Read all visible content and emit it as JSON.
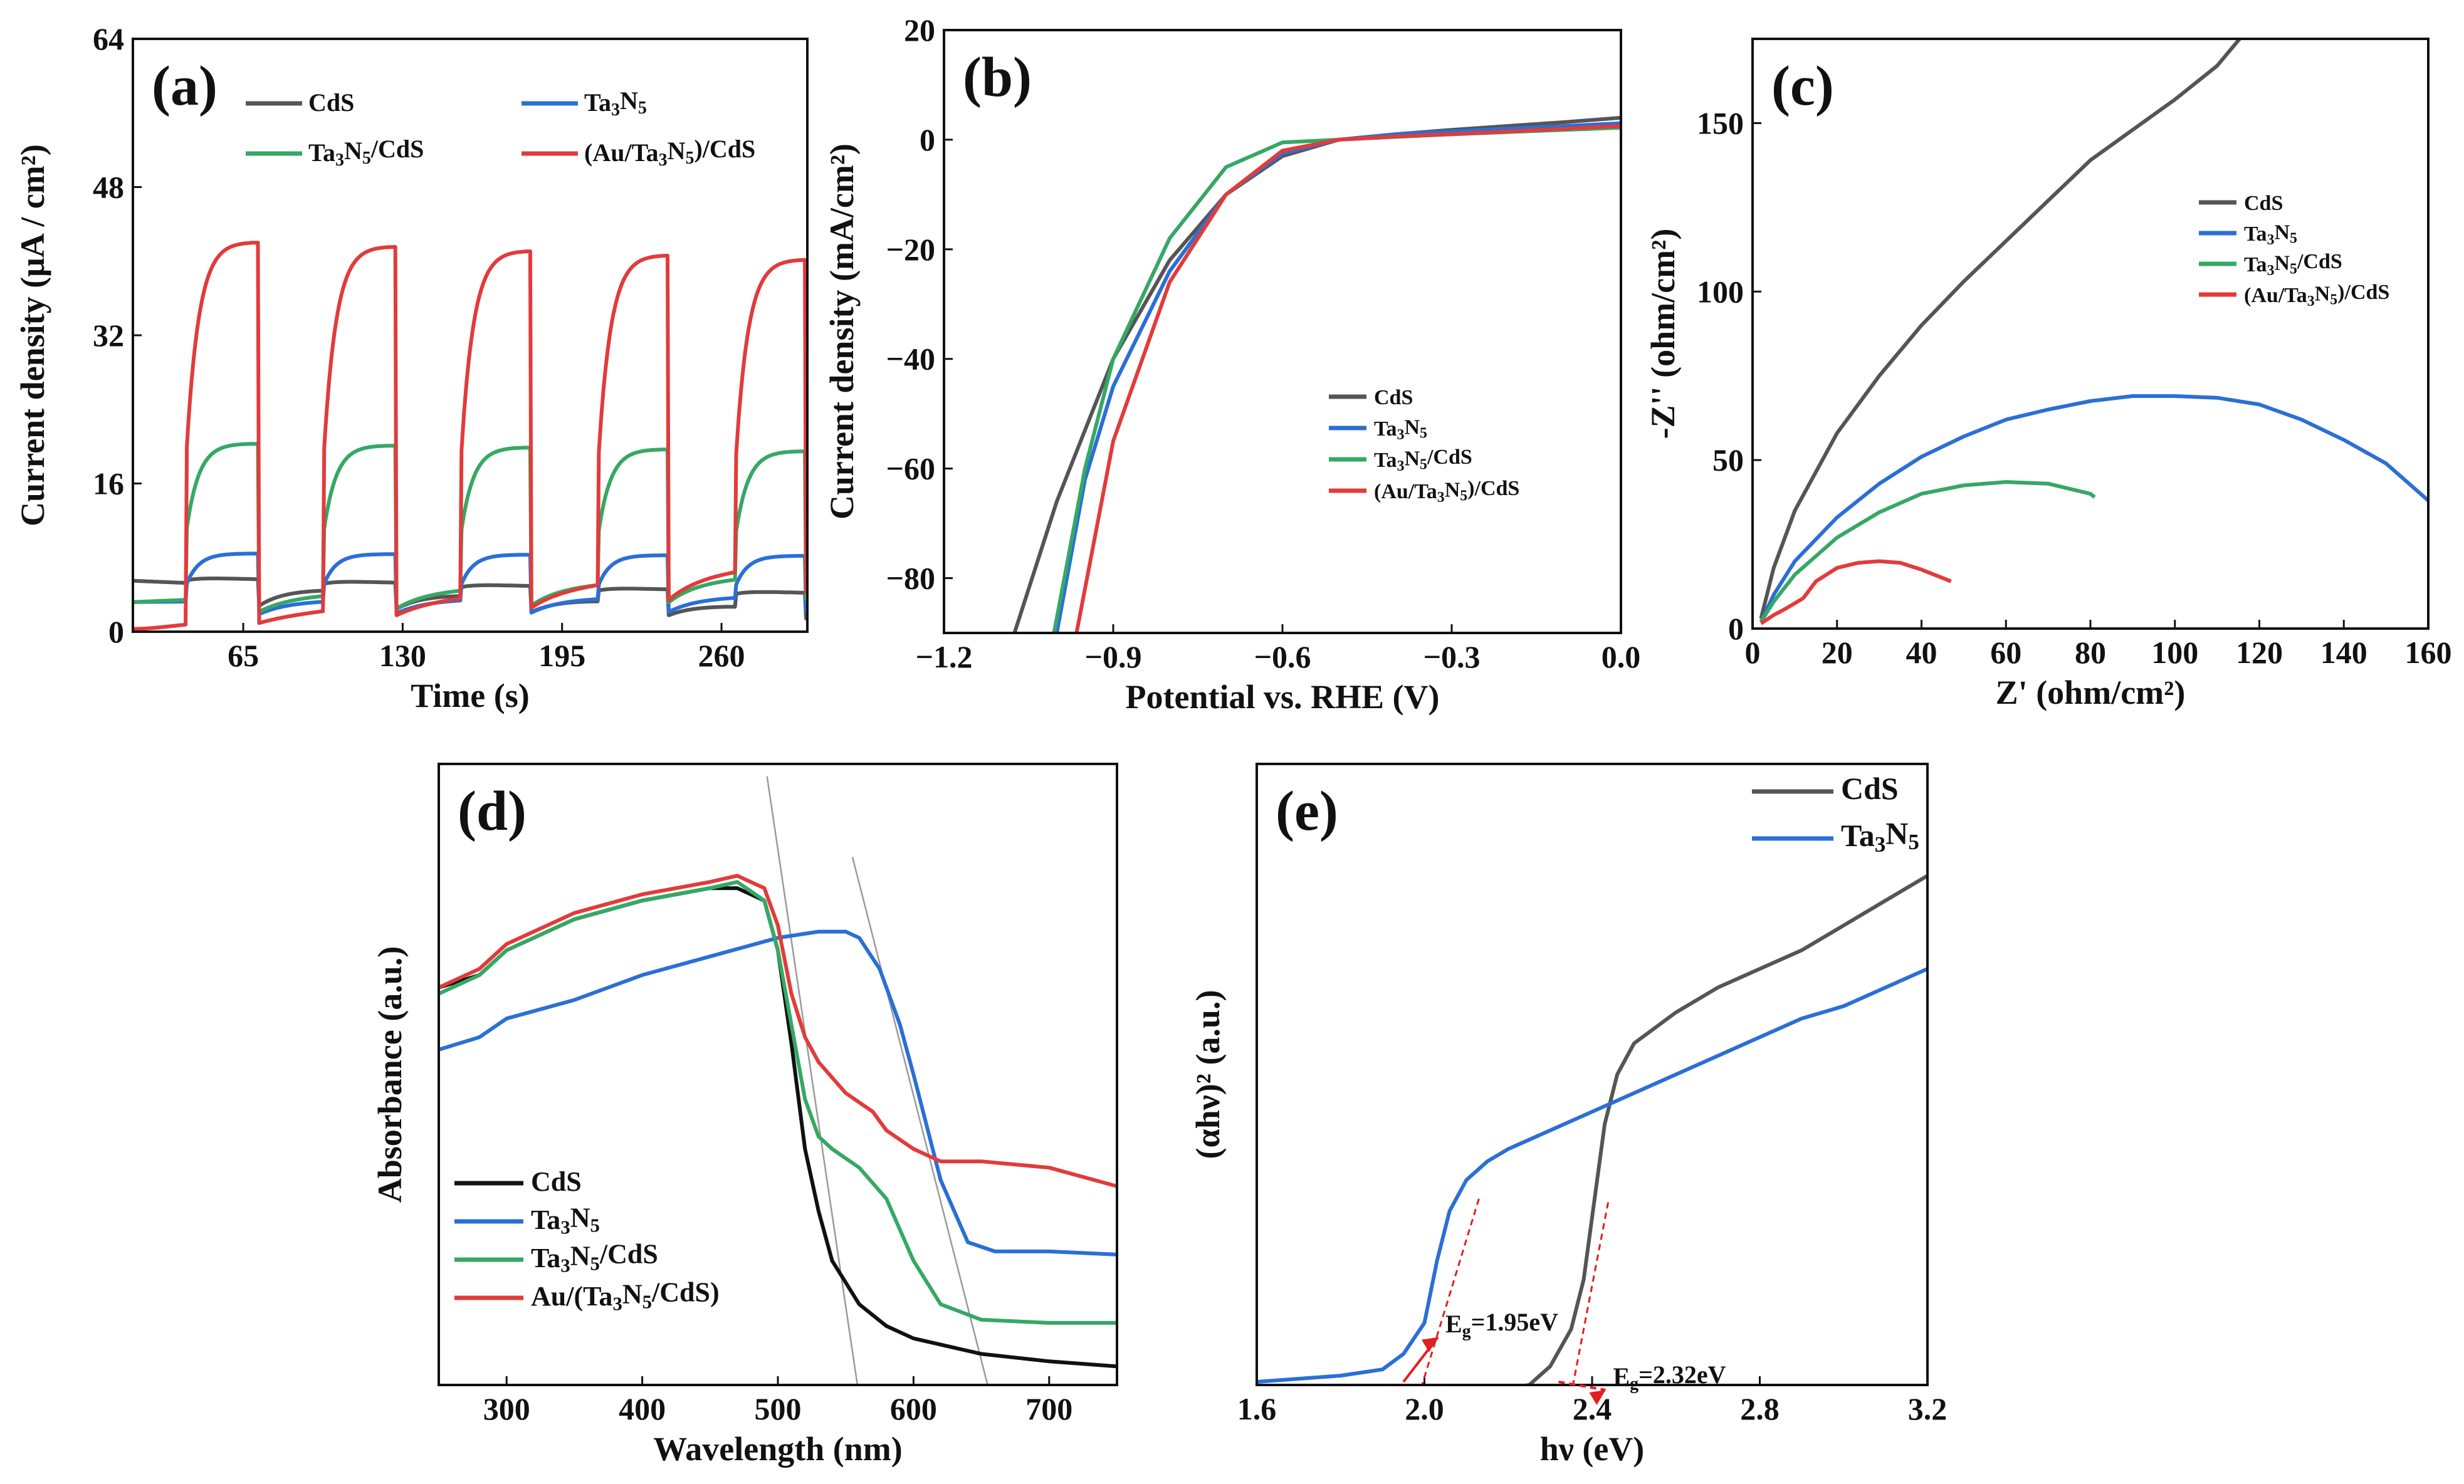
{
  "colors": {
    "cds": "#555555",
    "ta3n5": "#2b6fd6",
    "ta3n5_cds": "#35a865",
    "au_ta3n5_cds": "#e23b3b",
    "cds_black": "#111111",
    "guide": "#9a9a9a",
    "annot_red": "#e02020"
  },
  "chart_data": [
    {
      "id": "a",
      "panel_label": "(a)",
      "type": "line",
      "xlabel": "Time (s)",
      "ylabel": "Current density (μA / cm²)",
      "xlim": [
        20,
        295
      ],
      "ylim": [
        0,
        64
      ],
      "xticks": [
        65,
        130,
        195,
        260
      ],
      "xtick_labels": [
        "65",
        "130",
        "195",
        "260"
      ],
      "yticks": [
        0,
        16,
        32,
        48,
        64
      ],
      "ytick_labels": [
        "0",
        "16",
        "32",
        "48",
        "64"
      ],
      "legend": [
        "CdS",
        "Ta3N5",
        "Ta3N5/CdS",
        "(Au/Ta3N5)/CdS"
      ],
      "light_on_intervals": [
        [
          42,
          71
        ],
        [
          98,
          127
        ],
        [
          154,
          182
        ],
        [
          210,
          238
        ],
        [
          266,
          294
        ]
      ],
      "series": [
        {
          "name": "CdS",
          "dark_baseline": [
            5.5,
            2.5
          ],
          "on_plateau": [
            6.0,
            4.2
          ],
          "rise": 0.3
        },
        {
          "name": "Ta3N5",
          "dark_baseline": [
            3.2,
            3.9
          ],
          "on_plateau": [
            8.5,
            8.2
          ],
          "rise": 3
        },
        {
          "name": "Ta3N5/CdS",
          "dark_baseline": [
            3.2,
            6.2
          ],
          "on_plateau": [
            20.5,
            19.5
          ],
          "rise": 5
        },
        {
          "name": "(Au/Ta3N5)/CdS",
          "dark_baseline": [
            0.3,
            7.5
          ],
          "on_plateau": [
            42.5,
            40.2
          ],
          "rise": 5
        }
      ]
    },
    {
      "id": "b",
      "panel_label": "(b)",
      "type": "line",
      "xlabel": "Potential vs. RHE (V)",
      "ylabel": "Current density (mA/cm²)",
      "xlim": [
        -1.2,
        0.0
      ],
      "ylim": [
        -90,
        20
      ],
      "xticks": [
        -1.2,
        -0.9,
        -0.6,
        -0.3,
        0.0
      ],
      "xtick_labels": [
        "−1.2",
        "−0.9",
        "−0.6",
        "−0.3",
        "0.0"
      ],
      "yticks": [
        -80,
        -60,
        -40,
        -20,
        0,
        20
      ],
      "ytick_labels": [
        "−80",
        "−60",
        "−40",
        "−20",
        "0",
        "20"
      ],
      "legend": [
        "CdS",
        "Ta3N5",
        "Ta3N5/CdS",
        "(Au/Ta3N5)/CdS"
      ],
      "series": [
        {
          "name": "CdS",
          "x": [
            -1.075,
            -1.0,
            -0.9,
            -0.8,
            -0.7,
            -0.6,
            -0.5,
            -0.4,
            -0.3,
            -0.2,
            -0.1,
            0.0
          ],
          "y": [
            -90,
            -66,
            -40,
            -22,
            -10,
            -3,
            0,
            1,
            1.8,
            2.5,
            3.2,
            4.0
          ]
        },
        {
          "name": "Ta3N5",
          "x": [
            -1.0,
            -0.95,
            -0.9,
            -0.8,
            -0.7,
            -0.6,
            -0.5,
            -0.4,
            -0.3,
            -0.2,
            -0.1,
            0.0
          ],
          "y": [
            -90,
            -62,
            -45,
            -24,
            -10,
            -2.5,
            0,
            1,
            1.5,
            2.0,
            2.5,
            3.0
          ]
        },
        {
          "name": "Ta3N5/CdS",
          "x": [
            -1.005,
            -0.95,
            -0.9,
            -0.8,
            -0.7,
            -0.6,
            -0.5,
            -0.4,
            -0.3,
            -0.2,
            -0.1,
            0.0
          ],
          "y": [
            -90,
            -60,
            -40,
            -18,
            -5,
            -0.5,
            0,
            0.5,
            1.0,
            1.4,
            1.8,
            2.2
          ]
        },
        {
          "name": "(Au/Ta3N5)/CdS",
          "x": [
            -0.965,
            -0.9,
            -0.8,
            -0.7,
            -0.6,
            -0.5,
            -0.4,
            -0.3,
            -0.2,
            -0.1,
            0.0
          ],
          "y": [
            -90,
            -55,
            -26,
            -10,
            -2,
            0,
            0.6,
            1.0,
            1.5,
            2.0,
            2.5
          ]
        }
      ]
    },
    {
      "id": "c",
      "panel_label": "(c)",
      "type": "line",
      "xlabel": "Z' (ohm/cm²)",
      "ylabel": "-Z'' (ohm/cm²)",
      "xlim": [
        0,
        160
      ],
      "ylim": [
        0,
        175
      ],
      "xticks": [
        0,
        20,
        40,
        60,
        80,
        100,
        120,
        140,
        160
      ],
      "xtick_labels": [
        "0",
        "20",
        "40",
        "60",
        "80",
        "100",
        "120",
        "140",
        "160"
      ],
      "yticks": [
        0,
        50,
        100,
        150
      ],
      "ytick_labels": [
        "0",
        "50",
        "100",
        "150"
      ],
      "legend": [
        "CdS",
        "Ta3N5",
        "Ta3N5/CdS",
        "(Au/Ta3N5)/CdS"
      ],
      "series": [
        {
          "name": "CdS",
          "x": [
            2,
            5,
            10,
            20,
            30,
            40,
            50,
            60,
            70,
            80,
            90,
            100,
            110,
            116
          ],
          "y": [
            3,
            18,
            35,
            58,
            75,
            90,
            103,
            115,
            127,
            139,
            148,
            157,
            167,
            176
          ]
        },
        {
          "name": "Ta3N5",
          "x": [
            2,
            5,
            10,
            20,
            30,
            40,
            50,
            60,
            70,
            80,
            90,
            100,
            110,
            120,
            130,
            140,
            150,
            160
          ],
          "y": [
            2,
            10,
            20,
            33,
            43,
            51,
            57,
            62,
            65,
            67.5,
            69,
            69,
            68.5,
            66.5,
            62,
            56,
            49,
            38
          ]
        },
        {
          "name": "Ta3N5/CdS",
          "x": [
            2,
            5,
            10,
            20,
            30,
            40,
            50,
            60,
            70,
            80,
            81
          ],
          "y": [
            2,
            8,
            16,
            27,
            34.5,
            40,
            42.5,
            43.5,
            43,
            40,
            39
          ]
        },
        {
          "name": "(Au/Ta3N5)/CdS",
          "x": [
            2,
            5,
            8,
            12,
            15,
            20,
            25,
            30,
            35,
            40,
            45,
            47
          ],
          "y": [
            1.5,
            4,
            6,
            9,
            14,
            18,
            19.5,
            20,
            19.5,
            17.5,
            15,
            14
          ]
        }
      ]
    },
    {
      "id": "d",
      "panel_label": "(d)",
      "type": "line",
      "xlabel": "Wavelength (nm)",
      "ylabel": "Absorbance (a.u.)",
      "xlim": [
        250,
        750
      ],
      "ylim": [
        0,
        1
      ],
      "xticks": [
        300,
        400,
        500,
        600,
        700
      ],
      "xtick_labels": [
        "300",
        "400",
        "500",
        "600",
        "700"
      ],
      "yticks": [],
      "legend": [
        "CdS",
        "Ta3N5",
        "Ta3N5/CdS",
        "Au/(Ta3N5/CdS)"
      ],
      "guide_lines": [
        {
          "x1": 492,
          "y1": 0.98,
          "x2": 560,
          "y2": -0.02
        },
        {
          "x1": 555,
          "y1": 0.85,
          "x2": 657,
          "y2": -0.02
        }
      ],
      "series": [
        {
          "name": "CdS",
          "x": [
            250,
            280,
            300,
            350,
            400,
            450,
            470,
            490,
            500,
            510,
            520,
            530,
            540,
            560,
            580,
            600,
            650,
            700,
            750
          ],
          "y": [
            0.64,
            0.66,
            0.7,
            0.75,
            0.78,
            0.8,
            0.8,
            0.78,
            0.7,
            0.55,
            0.38,
            0.28,
            0.2,
            0.13,
            0.095,
            0.075,
            0.05,
            0.038,
            0.03
          ]
        },
        {
          "name": "Ta3N5",
          "x": [
            250,
            280,
            300,
            350,
            400,
            450,
            500,
            530,
            550,
            560,
            575,
            590,
            600,
            620,
            640,
            660,
            700,
            750
          ],
          "y": [
            0.54,
            0.56,
            0.59,
            0.62,
            0.66,
            0.69,
            0.72,
            0.73,
            0.73,
            0.72,
            0.67,
            0.58,
            0.5,
            0.33,
            0.23,
            0.215,
            0.215,
            0.21
          ]
        },
        {
          "name": "Ta3N5/CdS",
          "x": [
            250,
            280,
            300,
            350,
            400,
            450,
            470,
            490,
            500,
            510,
            520,
            530,
            540,
            560,
            580,
            600,
            620,
            650,
            700,
            750
          ],
          "y": [
            0.63,
            0.66,
            0.7,
            0.75,
            0.78,
            0.8,
            0.81,
            0.78,
            0.7,
            0.58,
            0.46,
            0.4,
            0.38,
            0.35,
            0.3,
            0.2,
            0.13,
            0.105,
            0.1,
            0.1
          ]
        },
        {
          "name": "Au/(Ta3N5/CdS)",
          "x": [
            250,
            280,
            300,
            350,
            400,
            450,
            470,
            490,
            500,
            510,
            520,
            530,
            550,
            570,
            580,
            600,
            620,
            650,
            700,
            750
          ],
          "y": [
            0.64,
            0.67,
            0.71,
            0.76,
            0.79,
            0.81,
            0.82,
            0.8,
            0.74,
            0.63,
            0.56,
            0.52,
            0.47,
            0.44,
            0.41,
            0.38,
            0.36,
            0.36,
            0.35,
            0.32
          ]
        }
      ]
    },
    {
      "id": "e",
      "panel_label": "(e)",
      "type": "line",
      "xlabel": "hν (eV)",
      "ylabel": "(αhν)² (a.u.)",
      "xlim": [
        1.6,
        3.2
      ],
      "ylim": [
        0,
        1
      ],
      "xticks": [
        1.6,
        2.0,
        2.4,
        2.8,
        3.2
      ],
      "xtick_labels": [
        "1.6",
        "2.0",
        "2.4",
        "2.8",
        "3.2"
      ],
      "yticks": [],
      "legend": [
        "CdS",
        "Ta3N5"
      ],
      "annotations": [
        {
          "label": "Eg=1.95eV",
          "x": 1.95,
          "text_x": 2.05,
          "text_y": 0.085
        },
        {
          "label": "Eg=2.32eV",
          "x": 2.32,
          "text_x": 2.45,
          "text_y": 0.0
        }
      ],
      "tangents": [
        {
          "x1": 1.94,
          "y1": -0.12,
          "x2": 2.13,
          "y2": 0.3
        },
        {
          "x1": 2.32,
          "y1": -0.12,
          "x2": 2.44,
          "y2": 0.3
        }
      ],
      "series": [
        {
          "name": "CdS",
          "x": [
            1.6,
            1.8,
            2.0,
            2.2,
            2.25,
            2.3,
            2.35,
            2.38,
            2.4,
            2.43,
            2.46,
            2.5,
            2.6,
            2.7,
            2.8,
            2.9,
            3.0,
            3.1,
            3.2
          ],
          "y": [
            -0.01,
            -0.01,
            -0.01,
            -0.005,
            0.0,
            0.03,
            0.09,
            0.17,
            0.27,
            0.42,
            0.5,
            0.55,
            0.6,
            0.64,
            0.67,
            0.7,
            0.74,
            0.78,
            0.82
          ]
        },
        {
          "name": "Ta3N5",
          "x": [
            1.6,
            1.8,
            1.9,
            1.95,
            2.0,
            2.03,
            2.06,
            2.1,
            2.15,
            2.2,
            2.3,
            2.4,
            2.5,
            2.6,
            2.7,
            2.8,
            2.9,
            3.0,
            3.1,
            3.2
          ],
          "y": [
            0.005,
            0.015,
            0.025,
            0.05,
            0.1,
            0.2,
            0.28,
            0.33,
            0.36,
            0.38,
            0.41,
            0.44,
            0.47,
            0.5,
            0.53,
            0.56,
            0.59,
            0.61,
            0.64,
            0.67
          ]
        }
      ]
    }
  ]
}
